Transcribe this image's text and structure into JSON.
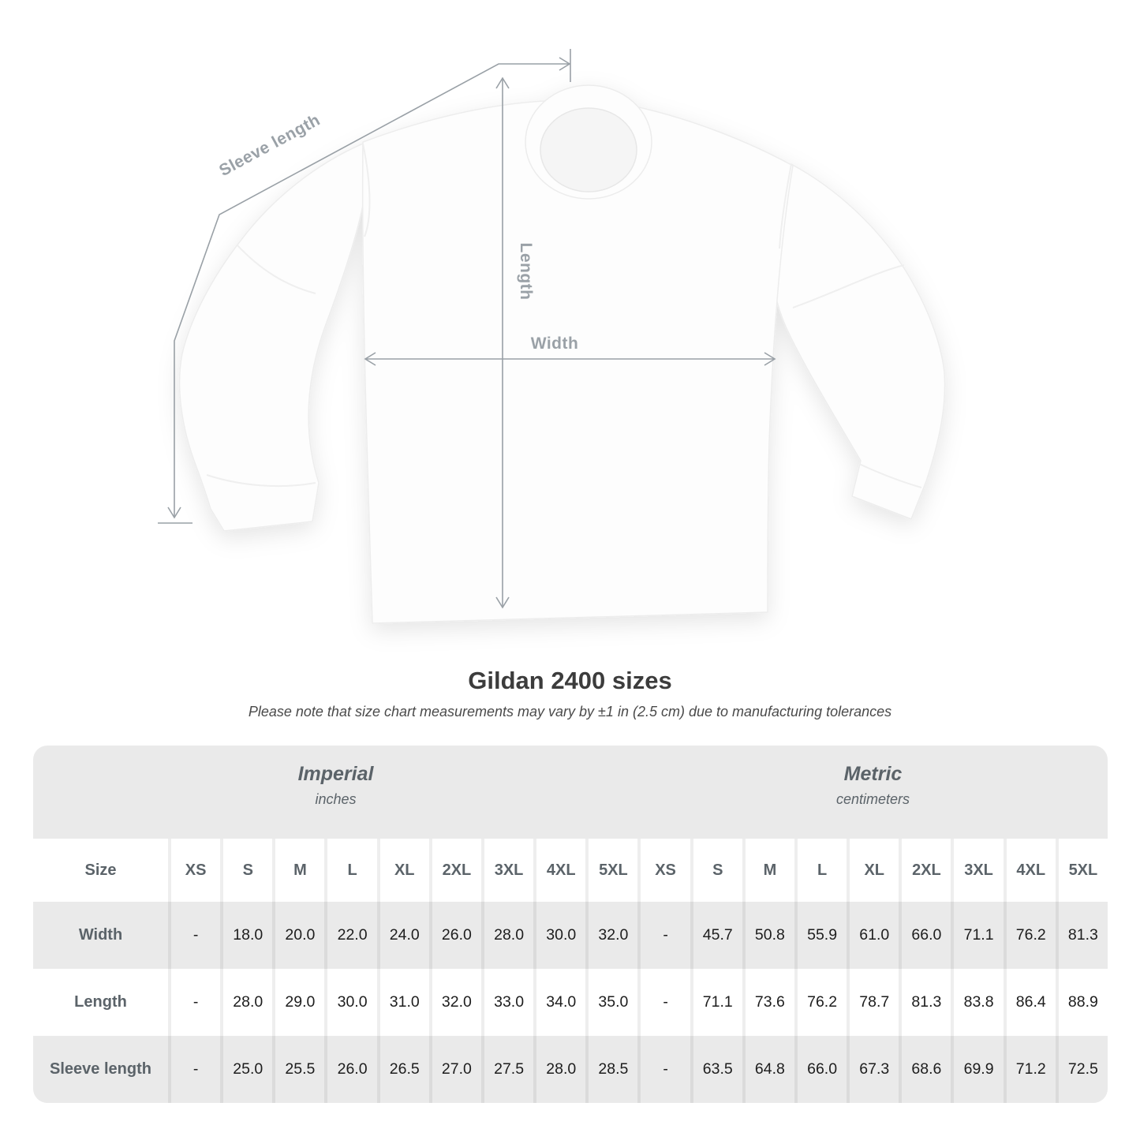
{
  "figure": {
    "labels": {
      "sleeve": "Sleeve length",
      "length": "Length",
      "width": "Width"
    },
    "line_color": "#99a0a6",
    "label_color": "#9aa1a7"
  },
  "header": {
    "title": "Gildan 2400 sizes",
    "subtitle": "Please note that size chart measurements may vary by ±1 in (2.5 cm) due to manufacturing tolerances"
  },
  "table": {
    "unit_groups": [
      {
        "label": "Imperial",
        "sub": "inches"
      },
      {
        "label": "Metric",
        "sub": "centimeters"
      }
    ],
    "size_header": {
      "label": "Size",
      "sizes": [
        "XS",
        "S",
        "M",
        "L",
        "XL",
        "2XL",
        "3XL",
        "4XL",
        "5XL"
      ]
    },
    "rows": [
      {
        "label": "Width",
        "imperial": [
          "-",
          "18.0",
          "20.0",
          "22.0",
          "24.0",
          "26.0",
          "28.0",
          "30.0",
          "32.0"
        ],
        "metric": [
          "-",
          "45.7",
          "50.8",
          "55.9",
          "61.0",
          "66.0",
          "71.1",
          "76.2",
          "81.3"
        ]
      },
      {
        "label": "Length",
        "imperial": [
          "-",
          "28.0",
          "29.0",
          "30.0",
          "31.0",
          "32.0",
          "33.0",
          "34.0",
          "35.0"
        ],
        "metric": [
          "-",
          "71.1",
          "73.6",
          "76.2",
          "78.7",
          "81.3",
          "83.8",
          "86.4",
          "88.9"
        ]
      },
      {
        "label": "Sleeve length",
        "imperial": [
          "-",
          "25.0",
          "25.5",
          "26.0",
          "26.5",
          "27.0",
          "27.5",
          "28.0",
          "28.5"
        ],
        "metric": [
          "-",
          "63.5",
          "64.8",
          "66.0",
          "67.3",
          "68.6",
          "69.9",
          "71.2",
          "72.5"
        ]
      }
    ],
    "row_stripes": [
      "bg-g",
      "bg-w",
      "bg-g"
    ],
    "colors": {
      "band_gray": "#eaeaea",
      "header_text": "#5b6369",
      "value_text": "#1d1d1d"
    }
  }
}
